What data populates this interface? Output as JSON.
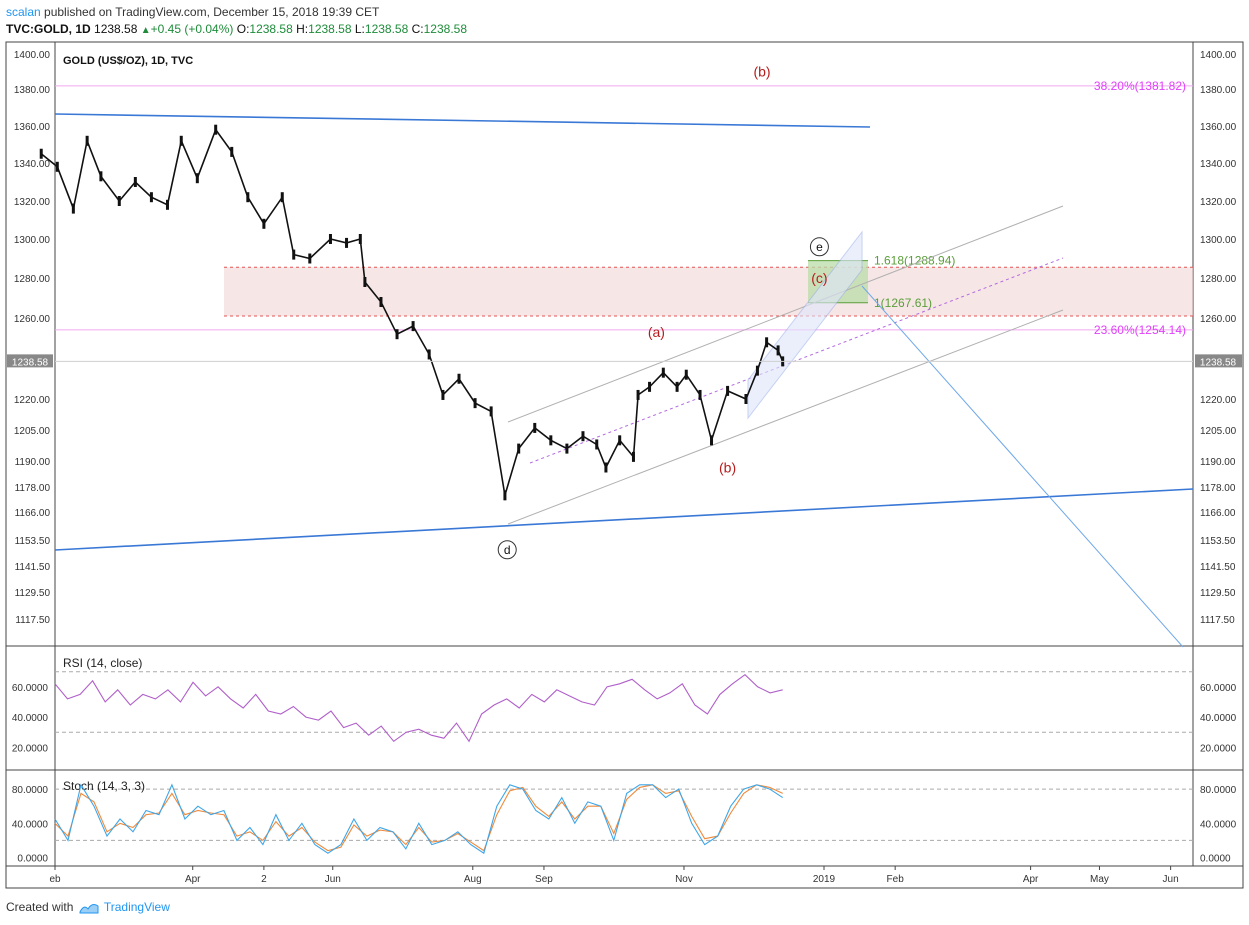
{
  "header": {
    "user": "scalan",
    "published": "published on TradingView.com, December 15, 2018 19:39 CET",
    "symbol": "TVC:GOLD, 1D",
    "last": "1238.58",
    "change": "+0.45 (+0.04%)",
    "o_label": "O:",
    "o": "1238.58",
    "h_label": "H:",
    "h": "1238.58",
    "l_label": "L:",
    "l": "1238.58",
    "c_label": "C:",
    "c": "1238.58"
  },
  "footer": {
    "created_with": "Created with",
    "brand": "TradingView"
  },
  "chart_data": {
    "type": "line",
    "title": "GOLD (US$/OZ), 1D, TVC",
    "ylabel": "",
    "xlabel": "",
    "price_ticks": [
      1400.0,
      1380.0,
      1360.0,
      1340.0,
      1320.0,
      1300.0,
      1280.0,
      1260.0,
      1220.0,
      1205.0,
      1190.0,
      1178.0,
      1166.0,
      1153.5,
      1141.5,
      1129.5,
      1117.5
    ],
    "price_tick_labels": [
      "1400.00",
      "1380.00",
      "1360.00",
      "1340.00",
      "1320.00",
      "1300.00",
      "1280.00",
      "1260.00",
      "1220.00",
      "1205.00",
      "1190.00",
      "1178.00",
      "1166.00",
      "1153.50",
      "1141.50",
      "1129.50",
      "1117.50"
    ],
    "last_price_label": "1238.58",
    "last_price": 1238.58,
    "x_tick_labels": [
      "eb",
      "Apr",
      "2",
      "Jun",
      "Aug",
      "Sep",
      "Nov",
      "2019",
      "Feb",
      "Apr",
      "May",
      "Jun"
    ],
    "x_tick_dates": [
      "2018-01-31",
      "2018-04-01",
      "2018-05-02",
      "2018-06-01",
      "2018-08-01",
      "2018-09-01",
      "2018-11-01",
      "2019-01-01",
      "2019-02-01",
      "2019-04-01",
      "2019-05-01",
      "2019-06-01"
    ],
    "price_path": [
      {
        "date": "2018-01-25",
        "price": 1345
      },
      {
        "date": "2018-02-01",
        "price": 1338
      },
      {
        "date": "2018-02-08",
        "price": 1316
      },
      {
        "date": "2018-02-14",
        "price": 1352
      },
      {
        "date": "2018-02-20",
        "price": 1333
      },
      {
        "date": "2018-02-28",
        "price": 1320
      },
      {
        "date": "2018-03-07",
        "price": 1330
      },
      {
        "date": "2018-03-14",
        "price": 1322
      },
      {
        "date": "2018-03-21",
        "price": 1318
      },
      {
        "date": "2018-03-27",
        "price": 1352
      },
      {
        "date": "2018-04-03",
        "price": 1332
      },
      {
        "date": "2018-04-11",
        "price": 1358
      },
      {
        "date": "2018-04-18",
        "price": 1346
      },
      {
        "date": "2018-04-25",
        "price": 1322
      },
      {
        "date": "2018-05-02",
        "price": 1308
      },
      {
        "date": "2018-05-10",
        "price": 1322
      },
      {
        "date": "2018-05-15",
        "price": 1292
      },
      {
        "date": "2018-05-22",
        "price": 1290
      },
      {
        "date": "2018-05-31",
        "price": 1300
      },
      {
        "date": "2018-06-07",
        "price": 1298
      },
      {
        "date": "2018-06-13",
        "price": 1300
      },
      {
        "date": "2018-06-15",
        "price": 1278
      },
      {
        "date": "2018-06-22",
        "price": 1268
      },
      {
        "date": "2018-06-29",
        "price": 1252
      },
      {
        "date": "2018-07-06",
        "price": 1256
      },
      {
        "date": "2018-07-13",
        "price": 1242
      },
      {
        "date": "2018-07-19",
        "price": 1222
      },
      {
        "date": "2018-07-26",
        "price": 1230
      },
      {
        "date": "2018-08-02",
        "price": 1218
      },
      {
        "date": "2018-08-09",
        "price": 1214
      },
      {
        "date": "2018-08-15",
        "price": 1174
      },
      {
        "date": "2018-08-21",
        "price": 1196
      },
      {
        "date": "2018-08-28",
        "price": 1206
      },
      {
        "date": "2018-09-04",
        "price": 1200
      },
      {
        "date": "2018-09-11",
        "price": 1196
      },
      {
        "date": "2018-09-18",
        "price": 1202
      },
      {
        "date": "2018-09-24",
        "price": 1198
      },
      {
        "date": "2018-09-28",
        "price": 1187
      },
      {
        "date": "2018-10-04",
        "price": 1200
      },
      {
        "date": "2018-10-10",
        "price": 1192
      },
      {
        "date": "2018-10-12",
        "price": 1222
      },
      {
        "date": "2018-10-17",
        "price": 1226
      },
      {
        "date": "2018-10-23",
        "price": 1233
      },
      {
        "date": "2018-10-29",
        "price": 1226
      },
      {
        "date": "2018-11-02",
        "price": 1232
      },
      {
        "date": "2018-11-08",
        "price": 1222
      },
      {
        "date": "2018-11-13",
        "price": 1200
      },
      {
        "date": "2018-11-20",
        "price": 1224
      },
      {
        "date": "2018-11-28",
        "price": 1220
      },
      {
        "date": "2018-12-03",
        "price": 1234
      },
      {
        "date": "2018-12-07",
        "price": 1248
      },
      {
        "date": "2018-12-12",
        "price": 1244
      },
      {
        "date": "2018-12-14",
        "price": 1238.58
      }
    ],
    "levels": [
      {
        "label": "38.20%(1381.82)",
        "price": 1381.82,
        "color": "#e040fb"
      },
      {
        "label": "23.60%(1254.14)",
        "price": 1254.14,
        "color": "#e040fb"
      },
      {
        "label": "1.618(1288.94)",
        "price": 1288.94,
        "color": "#5a9e3a"
      },
      {
        "label": "1(1267.61)",
        "price": 1267.61,
        "color": "#5a9e3a"
      }
    ],
    "zone": {
      "from": 1261.0,
      "to": 1285.5,
      "color": "#f2d5d5"
    },
    "wave_labels": [
      {
        "text": "(b)",
        "date": "2018-12-05",
        "price": 1390.0,
        "color": "#b71c1c"
      },
      {
        "text": "(a)",
        "date": "2018-10-20",
        "price": 1253.0,
        "color": "#b71c1c"
      },
      {
        "text": "(b)",
        "date": "2018-11-20",
        "price": 1187.0,
        "color": "#b71c1c"
      },
      {
        "text": "(c)",
        "date": "2018-12-30",
        "price": 1280.0,
        "color": "#b71c1c"
      }
    ],
    "circle_labels": [
      {
        "text": "d",
        "date": "2018-08-16",
        "price": 1149.0
      },
      {
        "text": "e",
        "date": "2018-12-30",
        "price": 1296.0
      }
    ],
    "rsi": {
      "label": "RSI (14, close)",
      "tick_labels": [
        "60.0000",
        "40.0000",
        "20.0000"
      ],
      "ticks": [
        60,
        40,
        20
      ],
      "bands": [
        70,
        30
      ],
      "values": [
        62,
        52,
        55,
        64,
        50,
        58,
        48,
        55,
        52,
        58,
        50,
        63,
        54,
        60,
        52,
        46,
        55,
        44,
        42,
        47,
        40,
        38,
        44,
        33,
        36,
        28,
        34,
        24,
        30,
        32,
        28,
        26,
        36,
        24,
        42,
        48,
        52,
        46,
        55,
        50,
        58,
        54,
        50,
        48,
        60,
        62,
        65,
        58,
        52,
        56,
        62,
        48,
        42,
        55,
        62,
        68,
        60,
        56,
        58
      ]
    },
    "stoch": {
      "label": "Stoch (14, 3, 3)",
      "tick_labels": [
        "80.0000",
        "40.0000",
        "0.0000"
      ],
      "ticks": [
        80,
        40,
        0
      ],
      "bands": [
        80,
        20
      ],
      "k": [
        45,
        20,
        85,
        60,
        25,
        45,
        30,
        55,
        50,
        85,
        45,
        60,
        50,
        55,
        20,
        35,
        15,
        50,
        20,
        40,
        15,
        5,
        15,
        45,
        20,
        35,
        30,
        10,
        40,
        15,
        20,
        30,
        15,
        5,
        60,
        85,
        80,
        55,
        45,
        70,
        40,
        65,
        60,
        20,
        75,
        85,
        85,
        70,
        80,
        40,
        15,
        25,
        60,
        80,
        85,
        80,
        70
      ],
      "d": [
        40,
        25,
        75,
        65,
        30,
        40,
        35,
        50,
        52,
        75,
        50,
        55,
        52,
        50,
        25,
        30,
        20,
        42,
        25,
        35,
        18,
        8,
        12,
        38,
        25,
        32,
        30,
        15,
        35,
        18,
        20,
        28,
        18,
        8,
        50,
        78,
        82,
        60,
        48,
        65,
        45,
        60,
        60,
        28,
        68,
        82,
        85,
        75,
        78,
        48,
        22,
        25,
        52,
        75,
        85,
        82,
        75
      ]
    }
  }
}
